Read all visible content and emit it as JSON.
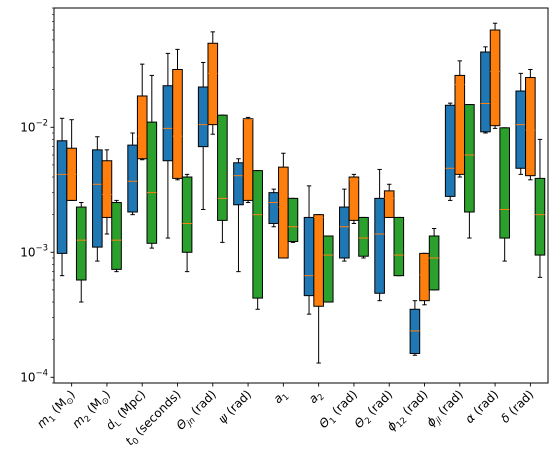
{
  "chart_data": {
    "type": "box",
    "yscale": "log",
    "ylim": [
      9e-05,
      0.09
    ],
    "y_tick_labels": [
      {
        "value": 0.0001,
        "base": "10",
        "exp": "−4"
      },
      {
        "value": 0.001,
        "base": "10",
        "exp": "−3"
      },
      {
        "value": 0.01,
        "base": "10",
        "exp": "−2"
      }
    ],
    "categories": [
      {
        "parts": [
          {
            "t": "m",
            "i": true
          },
          {
            "t": "1",
            "sub": true
          },
          {
            "t": " (M"
          },
          {
            "t": "⊙",
            "sub": true
          },
          {
            "t": ")"
          }
        ]
      },
      {
        "parts": [
          {
            "t": "m",
            "i": true
          },
          {
            "t": "2",
            "sub": true
          },
          {
            "t": " (M"
          },
          {
            "t": "⊙",
            "sub": true
          },
          {
            "t": ")"
          }
        ]
      },
      {
        "parts": [
          {
            "t": "d",
            "i": true
          },
          {
            "t": "L",
            "sub": true
          },
          {
            "t": " (Mpc)"
          }
        ]
      },
      {
        "parts": [
          {
            "t": "t",
            "i": true
          },
          {
            "t": "0",
            "sub": true
          },
          {
            "t": " (seconds)"
          }
        ]
      },
      {
        "parts": [
          {
            "t": "Θ",
            "i": true
          },
          {
            "t": "jn",
            "sub": true,
            "i": true
          },
          {
            "t": " (rad)"
          }
        ]
      },
      {
        "parts": [
          {
            "t": "ψ",
            "i": true
          },
          {
            "t": " (rad)"
          }
        ]
      },
      {
        "parts": [
          {
            "t": "a",
            "i": true
          },
          {
            "t": "1",
            "sub": true
          }
        ]
      },
      {
        "parts": [
          {
            "t": "a",
            "i": true
          },
          {
            "t": "2",
            "sub": true
          }
        ]
      },
      {
        "parts": [
          {
            "t": "Θ",
            "i": true
          },
          {
            "t": "1",
            "sub": true
          },
          {
            "t": " (rad)"
          }
        ]
      },
      {
        "parts": [
          {
            "t": "Θ",
            "i": true
          },
          {
            "t": "2",
            "sub": true
          },
          {
            "t": " (rad)"
          }
        ]
      },
      {
        "parts": [
          {
            "t": "ϕ",
            "i": true
          },
          {
            "t": "12",
            "sub": true
          },
          {
            "t": " (rad)"
          }
        ]
      },
      {
        "parts": [
          {
            "t": "ϕ",
            "i": true
          },
          {
            "t": "jl",
            "sub": true,
            "i": true
          },
          {
            "t": " (rad)"
          }
        ]
      },
      {
        "parts": [
          {
            "t": "α",
            "i": true
          },
          {
            "t": " (rad)"
          }
        ]
      },
      {
        "parts": [
          {
            "t": "δ",
            "i": true
          },
          {
            "t": " (rad)"
          }
        ]
      }
    ],
    "series": [
      {
        "color": "#1f77b4",
        "boxes": [
          {
            "whislo": 0.00065,
            "q1": 0.00098,
            "med": 0.0042,
            "q3": 0.0078,
            "whishi": 0.0118
          },
          {
            "whislo": 0.00085,
            "q1": 0.0011,
            "med": 0.0035,
            "q3": 0.0066,
            "whishi": 0.0084
          },
          {
            "whislo": 0.002,
            "q1": 0.0021,
            "med": 0.0037,
            "q3": 0.0072,
            "whishi": 0.009
          },
          {
            "whislo": 0.0013,
            "q1": 0.0054,
            "med": 0.0098,
            "q3": 0.0215,
            "whishi": 0.039
          },
          {
            "whislo": 0.0022,
            "q1": 0.007,
            "med": 0.0105,
            "q3": 0.021,
            "whishi": 0.033
          },
          {
            "whislo": 0.0007,
            "q1": 0.0024,
            "med": 0.0041,
            "q3": 0.0052,
            "whishi": 0.0056
          },
          {
            "whislo": 0.0016,
            "q1": 0.0017,
            "med": 0.0025,
            "q3": 0.003,
            "whishi": 0.0032
          },
          {
            "whislo": 0.00032,
            "q1": 0.00045,
            "med": 0.00065,
            "q3": 0.0019,
            "whishi": 0.0034
          },
          {
            "whislo": 0.00085,
            "q1": 0.0009,
            "med": 0.0016,
            "q3": 0.0023,
            "whishi": 0.0032
          },
          {
            "whislo": 0.00041,
            "q1": 0.00047,
            "med": 0.0014,
            "q3": 0.0027,
            "whishi": 0.0046
          },
          {
            "whislo": 0.00015,
            "q1": 0.000155,
            "med": 0.000235,
            "q3": 0.00035,
            "whishi": 0.00041
          },
          {
            "whislo": 0.0026,
            "q1": 0.0028,
            "med": 0.0047,
            "q3": 0.015,
            "whishi": 0.0156
          },
          {
            "whislo": 0.009,
            "q1": 0.0092,
            "med": 0.0155,
            "q3": 0.04,
            "whishi": 0.044
          },
          {
            "whislo": 0.0042,
            "q1": 0.0047,
            "med": 0.0105,
            "q3": 0.0195,
            "whishi": 0.027
          }
        ]
      },
      {
        "color": "#ff7f0e",
        "boxes": [
          {
            "whislo": 0.0026,
            "q1": 0.0026,
            "med": 0.0042,
            "q3": 0.0068,
            "whishi": 0.0115
          },
          {
            "whislo": 0.0014,
            "q1": 0.0019,
            "med": 0.0029,
            "q3": 0.0054,
            "whishi": 0.0066
          },
          {
            "whislo": 0.0055,
            "q1": 0.0056,
            "med": 0.0085,
            "q3": 0.0178,
            "whishi": 0.032
          },
          {
            "whislo": 0.0038,
            "q1": 0.0039,
            "med": 0.0085,
            "q3": 0.029,
            "whishi": 0.042
          },
          {
            "whislo": 0.0088,
            "q1": 0.0105,
            "med": 0.027,
            "q3": 0.047,
            "whishi": 0.058
          },
          {
            "whislo": 0.0025,
            "q1": 0.0026,
            "med": 0.0115,
            "q3": 0.0117,
            "whishi": 0.012
          },
          {
            "whislo": 0.0009,
            "q1": 0.0009,
            "med": 0.0023,
            "q3": 0.0048,
            "whishi": 0.0062
          },
          {
            "whislo": 0.00013,
            "q1": 0.00037,
            "med": 0.0019,
            "q3": 0.002,
            "whishi": 0.002
          },
          {
            "whislo": 0.0017,
            "q1": 0.0018,
            "med": 0.0038,
            "q3": 0.004,
            "whishi": 0.0042
          },
          {
            "whislo": 0.0019,
            "q1": 0.0019,
            "med": 0.0027,
            "q3": 0.0031,
            "whishi": 0.0035
          },
          {
            "whislo": 0.00038,
            "q1": 0.00041,
            "med": 0.00066,
            "q3": 0.00098,
            "whishi": 0.00098
          },
          {
            "whislo": 0.004,
            "q1": 0.0042,
            "med": 0.022,
            "q3": 0.026,
            "whishi": 0.034
          },
          {
            "whislo": 0.0098,
            "q1": 0.0103,
            "med": 0.028,
            "q3": 0.06,
            "whishi": 0.068
          },
          {
            "whislo": 0.0038,
            "q1": 0.0041,
            "med": 0.0095,
            "q3": 0.025,
            "whishi": 0.029
          }
        ]
      },
      {
        "color": "#2ca02c",
        "boxes": [
          {
            "whislo": 0.0004,
            "q1": 0.0006,
            "med": 0.00125,
            "q3": 0.0023,
            "whishi": 0.0025
          },
          {
            "whislo": 0.0007,
            "q1": 0.00073,
            "med": 0.00125,
            "q3": 0.0025,
            "whishi": 0.0026
          },
          {
            "whislo": 0.00108,
            "q1": 0.00118,
            "med": 0.003,
            "q3": 0.011,
            "whishi": 0.026
          },
          {
            "whislo": 0.0007,
            "q1": 0.001,
            "med": 0.0017,
            "q3": 0.004,
            "whishi": 0.0042
          },
          {
            "whislo": 0.0012,
            "q1": 0.0018,
            "med": 0.0027,
            "q3": 0.0125,
            "whishi": 0.0125
          },
          {
            "whislo": 0.00035,
            "q1": 0.00043,
            "med": 0.002,
            "q3": 0.0045,
            "whishi": 0.0045
          },
          {
            "whislo": 0.0012,
            "q1": 0.00122,
            "med": 0.0016,
            "q3": 0.0027,
            "whishi": 0.0027
          },
          {
            "whislo": 0.0004,
            "q1": 0.0004,
            "med": 0.00095,
            "q3": 0.00135,
            "whishi": 0.00135
          },
          {
            "whislo": 0.0009,
            "q1": 0.00093,
            "med": 0.0013,
            "q3": 0.0019,
            "whishi": 0.0019
          },
          {
            "whislo": 0.00065,
            "q1": 0.00065,
            "med": 0.00095,
            "q3": 0.0019,
            "whishi": 0.0019
          },
          {
            "whislo": 0.0005,
            "q1": 0.0005,
            "med": 0.0009,
            "q3": 0.00135,
            "whishi": 0.00155
          },
          {
            "whislo": 0.0013,
            "q1": 0.0021,
            "med": 0.006,
            "q3": 0.0152,
            "whishi": 0.0152
          },
          {
            "whislo": 0.00085,
            "q1": 0.0013,
            "med": 0.0022,
            "q3": 0.0099,
            "whishi": 0.0099
          },
          {
            "whislo": 0.00063,
            "q1": 0.00095,
            "med": 0.002,
            "q3": 0.0039,
            "whishi": 0.008
          }
        ]
      }
    ],
    "median_color": "#ff7f0e",
    "grid": false,
    "legend": "none"
  }
}
